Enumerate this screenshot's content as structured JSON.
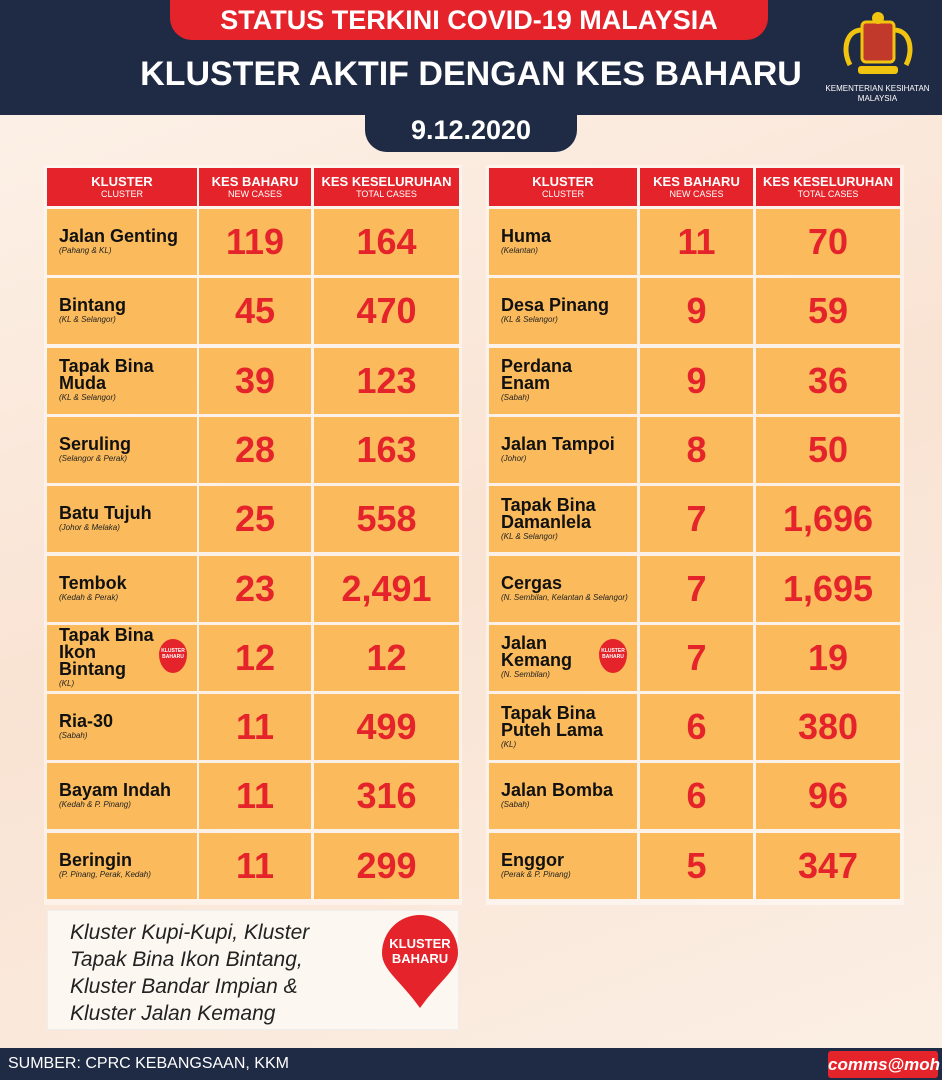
{
  "header": {
    "title": "STATUS TERKINI COVID-19 MALAYSIA",
    "subtitle": "KLUSTER AKTIF DENGAN KES BAHARU",
    "date": "9.12.2020",
    "logo_text": [
      "KEMENTERIAN KESIHATAN",
      "MALAYSIA"
    ]
  },
  "tables": [
    {
      "columns": [
        {
          "main": "KLUSTER",
          "sub": "CLUSTER"
        },
        {
          "main": "KES BAHARU",
          "sub": "NEW CASES"
        },
        {
          "main": "KES KESELURUHAN",
          "sub": "TOTAL CASES"
        }
      ],
      "rows": [
        {
          "name": [
            "Jalan Genting"
          ],
          "location": "(Pahang & KL)",
          "new": "119",
          "total": "164"
        },
        {
          "name": [
            "Bintang"
          ],
          "location": "(KL & Selangor)",
          "new": "45",
          "total": "470"
        },
        {
          "name": [
            "Tapak Bina",
            "Muda"
          ],
          "location": "(KL & Selangor)",
          "new": "39",
          "total": "123"
        },
        {
          "name": [
            "Seruling"
          ],
          "location": "(Selangor & Perak)",
          "new": "28",
          "total": "163"
        },
        {
          "name": [
            "Batu Tujuh"
          ],
          "location": "(Johor & Melaka)",
          "new": "25",
          "total": "558"
        },
        {
          "name": [
            "Tembok"
          ],
          "location": "(Kedah & Perak)",
          "new": "23",
          "total": "2,491"
        },
        {
          "name": [
            "Tapak Bina",
            "Ikon",
            "Bintang"
          ],
          "location": "(KL)",
          "new": "12",
          "total": "12",
          "badge": [
            "KLUSTER",
            "BAHARU"
          ]
        },
        {
          "name": [
            "Ria-30"
          ],
          "location": "(Sabah)",
          "new": "11",
          "total": "499"
        },
        {
          "name": [
            "Bayam Indah"
          ],
          "location": "(Kedah & P. Pinang)",
          "new": "11",
          "total": "316"
        },
        {
          "name": [
            "Beringin"
          ],
          "location": "(P. Pinang, Perak, Kedah)",
          "new": "11",
          "total": "299"
        }
      ]
    },
    {
      "columns": [
        {
          "main": "KLUSTER",
          "sub": "CLUSTER"
        },
        {
          "main": "KES BAHARU",
          "sub": "NEW CASES"
        },
        {
          "main": "KES KESELURUHAN",
          "sub": "TOTAL CASES"
        }
      ],
      "rows": [
        {
          "name": [
            "Huma"
          ],
          "location": "(Kelantan)",
          "new": "11",
          "total": "70"
        },
        {
          "name": [
            "Desa Pinang"
          ],
          "location": "(KL & Selangor)",
          "new": "9",
          "total": "59"
        },
        {
          "name": [
            "Perdana",
            "Enam"
          ],
          "location": "(Sabah)",
          "new": "9",
          "total": "36"
        },
        {
          "name": [
            "Jalan Tampoi"
          ],
          "location": "(Johor)",
          "new": "8",
          "total": "50"
        },
        {
          "name": [
            "Tapak Bina",
            "Damanlela"
          ],
          "location": "(KL & Selangor)",
          "new": "7",
          "total": "1,696"
        },
        {
          "name": [
            "Cergas"
          ],
          "location": "(N. Sembilan, Kelantan & Selangor)",
          "new": "7",
          "total": "1,695"
        },
        {
          "name": [
            "Jalan",
            "Kemang"
          ],
          "location": "(N. Sembilan)",
          "new": "7",
          "total": "19",
          "badge": [
            "KLUSTER",
            "BAHARU"
          ]
        },
        {
          "name": [
            "Tapak Bina",
            "Puteh Lama"
          ],
          "location": "(KL)",
          "new": "6",
          "total": "380"
        },
        {
          "name": [
            "Jalan Bomba"
          ],
          "location": "(Sabah)",
          "new": "6",
          "total": "96"
        },
        {
          "name": [
            "Enggor"
          ],
          "location": "(Perak & P. Pinang)",
          "new": "5",
          "total": "347"
        }
      ]
    }
  ],
  "note": {
    "lines": [
      "Kluster Kupi-Kupi, Kluster",
      "Tapak Bina Ikon Bintang,",
      "Kluster Bandar Impian &",
      "Kluster Jalan Kemang"
    ],
    "badge": [
      "KLUSTER",
      "BAHARU"
    ]
  },
  "footer": {
    "source": "SUMBER: CPRC KEBANGSAAN, KKM",
    "brand": "comms@moh"
  }
}
